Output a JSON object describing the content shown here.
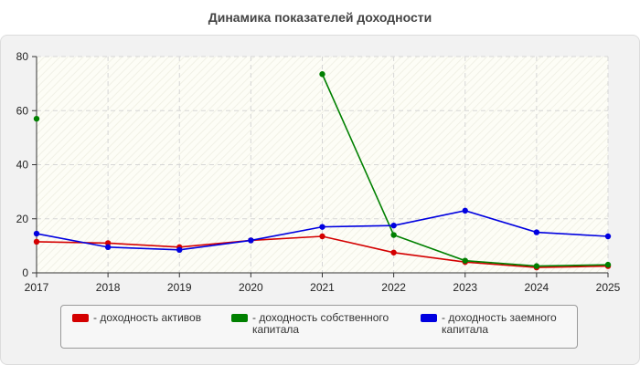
{
  "chart_data": {
    "type": "line",
    "title": "Динамика показателей доходности",
    "x": [
      "2017",
      "2018",
      "2019",
      "2020",
      "2021",
      "2022",
      "2023",
      "2024",
      "2025"
    ],
    "ylim": [
      0,
      80
    ],
    "yticks": [
      0,
      20,
      40,
      60,
      80
    ],
    "grid": true,
    "legend_position": "bottom",
    "series": [
      {
        "name": "- доходность активов",
        "color": "#d40000",
        "values": [
          11.5,
          11,
          9.5,
          12,
          13.5,
          7.5,
          4,
          2,
          2.5
        ]
      },
      {
        "name": "- доходность собственного капитала",
        "color": "#008000",
        "values": [
          57,
          null,
          null,
          null,
          73.5,
          14,
          4.5,
          2.5,
          3
        ]
      },
      {
        "name": "- доходность заемного капитала",
        "color": "#0000e0",
        "values": [
          14.5,
          9.5,
          8.5,
          12,
          17,
          17.5,
          23,
          15,
          13.5
        ]
      }
    ]
  }
}
